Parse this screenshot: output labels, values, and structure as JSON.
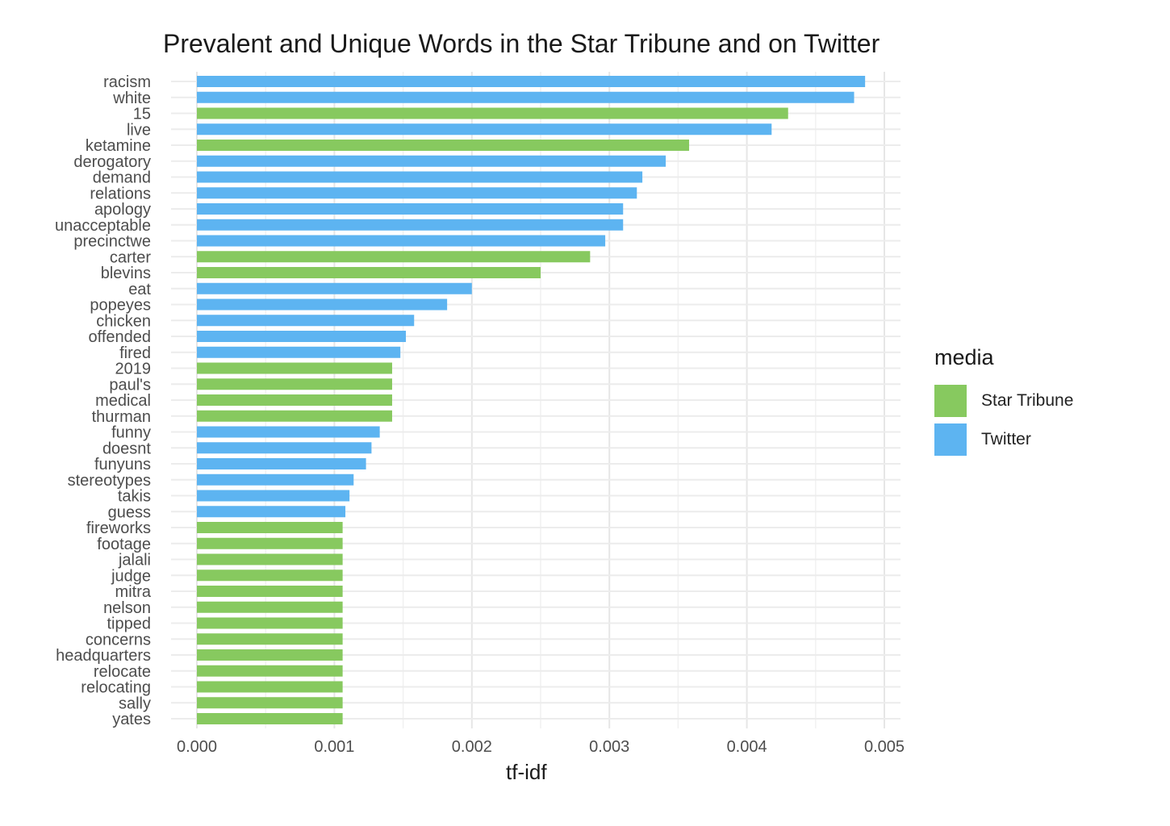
{
  "chart_data": {
    "type": "bar",
    "orientation": "horizontal",
    "title": "Prevalent and Unique Words in the Star Tribune and on Twitter",
    "xlabel": "tf-idf",
    "ylabel": "",
    "xlim": [
      0,
      0.005
    ],
    "x_ticks": [
      "0.000",
      "0.001",
      "0.002",
      "0.003",
      "0.004",
      "0.005"
    ],
    "grid": true,
    "legend": {
      "title": "media",
      "placement": "right",
      "entries": [
        {
          "name": "Star Tribune",
          "color": "#87c95f"
        },
        {
          "name": "Twitter",
          "color": "#5db4f1"
        }
      ]
    },
    "categories": [
      "racism",
      "white",
      "15",
      "live",
      "ketamine",
      "derogatory",
      "demand",
      "relations",
      "apology",
      "unacceptable",
      "precinctwe",
      "carter",
      "blevins",
      "eat",
      "popeyes",
      "chicken",
      "offended",
      "fired",
      "2019",
      "paul's",
      "medical",
      "thurman",
      "funny",
      "doesnt",
      "funyuns",
      "stereotypes",
      "takis",
      "guess",
      "fireworks",
      "footage",
      "jalali",
      "judge",
      "mitra",
      "nelson",
      "tipped",
      "concerns",
      "headquarters",
      "relocate",
      "relocating",
      "sally",
      "yates"
    ],
    "values": [
      0.00486,
      0.00478,
      0.0043,
      0.00418,
      0.00358,
      0.00341,
      0.00324,
      0.0032,
      0.0031,
      0.0031,
      0.00297,
      0.00286,
      0.0025,
      0.002,
      0.00182,
      0.00158,
      0.00152,
      0.00148,
      0.00142,
      0.00142,
      0.00142,
      0.00142,
      0.00133,
      0.00127,
      0.00123,
      0.00114,
      0.00111,
      0.00108,
      0.00106,
      0.00106,
      0.00106,
      0.00106,
      0.00106,
      0.00106,
      0.00106,
      0.00106,
      0.00106,
      0.00106,
      0.00106,
      0.00106,
      0.00106
    ],
    "media": [
      "Twitter",
      "Twitter",
      "Star Tribune",
      "Twitter",
      "Star Tribune",
      "Twitter",
      "Twitter",
      "Twitter",
      "Twitter",
      "Twitter",
      "Twitter",
      "Star Tribune",
      "Star Tribune",
      "Twitter",
      "Twitter",
      "Twitter",
      "Twitter",
      "Twitter",
      "Star Tribune",
      "Star Tribune",
      "Star Tribune",
      "Star Tribune",
      "Twitter",
      "Twitter",
      "Twitter",
      "Twitter",
      "Twitter",
      "Twitter",
      "Star Tribune",
      "Star Tribune",
      "Star Tribune",
      "Star Tribune",
      "Star Tribune",
      "Star Tribune",
      "Star Tribune",
      "Star Tribune",
      "Star Tribune",
      "Star Tribune",
      "Star Tribune",
      "Star Tribune",
      "Star Tribune"
    ]
  }
}
